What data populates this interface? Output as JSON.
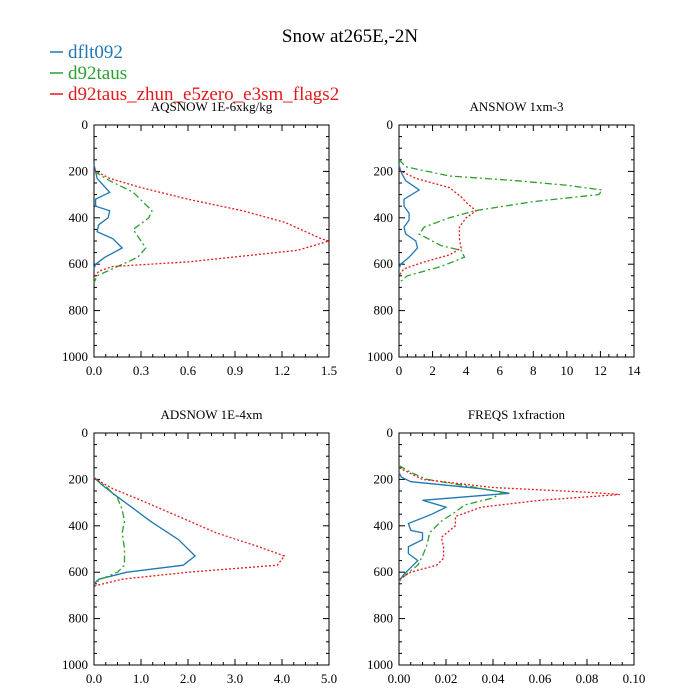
{
  "figure": {
    "title": "Snow at265E,-2N"
  },
  "legend": [
    {
      "name": "dflt092",
      "color": "#1f77b4",
      "dash": "solid"
    },
    {
      "name": "d92taus",
      "color": "#2ca02c",
      "dash": "dashdot"
    },
    {
      "name": "d92taus_zhun_e5zero_e3sm_flags2",
      "color": "#e31a1c",
      "dash": "dotted"
    }
  ],
  "chart_data": [
    {
      "type": "line",
      "title": "AQSNOW  1E-6xkg/kg",
      "xlim": [
        0,
        1.5
      ],
      "xticks": [
        "0.0",
        "0.3",
        "0.6",
        "0.9",
        "1.2",
        "1.5"
      ],
      "ylim": [
        1000,
        0
      ],
      "yticks": [
        "0",
        "200",
        "400",
        "600",
        "800",
        "1000"
      ],
      "series": [
        {
          "name": "dflt092",
          "points": [
            [
              0,
              170
            ],
            [
              0.01,
              200
            ],
            [
              0.02,
              230
            ],
            [
              0.1,
              290
            ],
            [
              0.01,
              320
            ],
            [
              0.01,
              350
            ],
            [
              0.1,
              370
            ],
            [
              0.09,
              400
            ],
            [
              0.03,
              430
            ],
            [
              0.02,
              460
            ],
            [
              0.12,
              490
            ],
            [
              0.18,
              530
            ],
            [
              0.07,
              570
            ],
            [
              0.01,
              600
            ],
            [
              0,
              620
            ]
          ]
        },
        {
          "name": "d92taus",
          "points": [
            [
              0,
              200
            ],
            [
              0.1,
              240
            ],
            [
              0.25,
              290
            ],
            [
              0.37,
              370
            ],
            [
              0.35,
              400
            ],
            [
              0.25,
              450
            ],
            [
              0.28,
              480
            ],
            [
              0.33,
              530
            ],
            [
              0.28,
              570
            ],
            [
              0.15,
              610
            ],
            [
              0.02,
              650
            ],
            [
              0,
              680
            ]
          ]
        },
        {
          "name": "d92taus_zhun_e5zero_e3sm_flags2",
          "points": [
            [
              0,
              195
            ],
            [
              0.1,
              230
            ],
            [
              0.3,
              270
            ],
            [
              0.6,
              320
            ],
            [
              0.95,
              370
            ],
            [
              1.22,
              420
            ],
            [
              1.35,
              460
            ],
            [
              1.45,
              490
            ],
            [
              1.5,
              500
            ],
            [
              1.3,
              540
            ],
            [
              0.6,
              590
            ],
            [
              0.12,
              610
            ],
            [
              0.03,
              630
            ],
            [
              0,
              660
            ]
          ]
        }
      ]
    },
    {
      "type": "line",
      "title": "ANSNOW  1xm-3",
      "xlim": [
        0,
        14
      ],
      "xticks": [
        "0",
        "2",
        "4",
        "6",
        "8",
        "10",
        "12",
        "14"
      ],
      "ylim": [
        1000,
        0
      ],
      "yticks": [
        "0",
        "200",
        "400",
        "600",
        "800",
        "1000"
      ],
      "series": [
        {
          "name": "dflt092",
          "points": [
            [
              0,
              170
            ],
            [
              0.1,
              200
            ],
            [
              0.4,
              240
            ],
            [
              1.2,
              280
            ],
            [
              0.3,
              320
            ],
            [
              0.3,
              350
            ],
            [
              0.6,
              380
            ],
            [
              0.6,
              410
            ],
            [
              0.3,
              440
            ],
            [
              0.4,
              470
            ],
            [
              1.0,
              500
            ],
            [
              1.1,
              530
            ],
            [
              0.6,
              570
            ],
            [
              0.1,
              600
            ],
            [
              0,
              620
            ]
          ]
        },
        {
          "name": "d92taus",
          "points": [
            [
              0,
              150
            ],
            [
              0.4,
              180
            ],
            [
              3.0,
              220
            ],
            [
              7.0,
              240
            ],
            [
              10.0,
              260
            ],
            [
              12.1,
              280
            ],
            [
              11.9,
              300
            ],
            [
              8.0,
              330
            ],
            [
              4.5,
              370
            ],
            [
              3.0,
              400
            ],
            [
              1.5,
              440
            ],
            [
              1.2,
              470
            ],
            [
              2.5,
              520
            ],
            [
              3.7,
              540
            ],
            [
              3.9,
              570
            ],
            [
              2.5,
              610
            ],
            [
              0.5,
              650
            ],
            [
              0,
              680
            ]
          ]
        },
        {
          "name": "d92taus_zhun_e5zero_e3sm_flags2",
          "points": [
            [
              0,
              195
            ],
            [
              1.0,
              230
            ],
            [
              3.0,
              270
            ],
            [
              3.7,
              310
            ],
            [
              4.1,
              340
            ],
            [
              4.6,
              370
            ],
            [
              4.0,
              400
            ],
            [
              3.6,
              440
            ],
            [
              3.6,
              490
            ],
            [
              3.7,
              530
            ],
            [
              3.0,
              560
            ],
            [
              1.5,
              590
            ],
            [
              0.3,
              620
            ],
            [
              0,
              650
            ]
          ]
        }
      ]
    },
    {
      "type": "line",
      "title": "ADSNOW  1E-4xm",
      "xlim": [
        0,
        5.0
      ],
      "xticks": [
        "0.0",
        "1.0",
        "2.0",
        "3.0",
        "4.0",
        "5.0"
      ],
      "ylim": [
        1000,
        0
      ],
      "yticks": [
        "0",
        "200",
        "400",
        "600",
        "800",
        "1000"
      ],
      "series": [
        {
          "name": "dflt092",
          "points": [
            [
              0,
              190
            ],
            [
              0.15,
              220
            ],
            [
              0.4,
              260
            ],
            [
              0.8,
              320
            ],
            [
              1.2,
              380
            ],
            [
              1.8,
              460
            ],
            [
              2.15,
              530
            ],
            [
              1.9,
              570
            ],
            [
              0.7,
              600
            ],
            [
              0.1,
              630
            ],
            [
              0,
              650
            ]
          ]
        },
        {
          "name": "d92taus",
          "points": [
            [
              0,
              195
            ],
            [
              0.25,
              230
            ],
            [
              0.5,
              280
            ],
            [
              0.6,
              330
            ],
            [
              0.65,
              380
            ],
            [
              0.6,
              430
            ],
            [
              0.65,
              500
            ],
            [
              0.65,
              570
            ],
            [
              0.5,
              600
            ],
            [
              0.15,
              630
            ],
            [
              0,
              650
            ]
          ]
        },
        {
          "name": "d92taus_zhun_e5zero_e3sm_flags2",
          "points": [
            [
              0,
              195
            ],
            [
              0.4,
              240
            ],
            [
              1.0,
              290
            ],
            [
              1.8,
              360
            ],
            [
              2.6,
              430
            ],
            [
              3.5,
              490
            ],
            [
              4.05,
              530
            ],
            [
              3.9,
              570
            ],
            [
              2.0,
              600
            ],
            [
              0.6,
              630
            ],
            [
              0,
              660
            ]
          ]
        }
      ]
    },
    {
      "type": "line",
      "title": "FREQS  1xfraction",
      "xlim": [
        0,
        0.1
      ],
      "xticks": [
        "0.00",
        "0.02",
        "0.04",
        "0.06",
        "0.08",
        "0.10"
      ],
      "ylim": [
        1000,
        0
      ],
      "yticks": [
        "0",
        "200",
        "400",
        "600",
        "800",
        "1000"
      ],
      "series": [
        {
          "name": "dflt092",
          "points": [
            [
              0,
              170
            ],
            [
              0.001,
              190
            ],
            [
              0.005,
              210
            ],
            [
              0.035,
              240
            ],
            [
              0.047,
              260
            ],
            [
              0.01,
              290
            ],
            [
              0.02,
              320
            ],
            [
              0.014,
              350
            ],
            [
              0.004,
              390
            ],
            [
              0.005,
              420
            ],
            [
              0.01,
              430
            ],
            [
              0.01,
              460
            ],
            [
              0.004,
              490
            ],
            [
              0.004,
              520
            ],
            [
              0.008,
              550
            ],
            [
              0.005,
              580
            ],
            [
              0.002,
              610
            ],
            [
              0,
              640
            ]
          ]
        },
        {
          "name": "d92taus",
          "points": [
            [
              0,
              140
            ],
            [
              0.005,
              170
            ],
            [
              0.012,
              200
            ],
            [
              0.03,
              230
            ],
            [
              0.044,
              255
            ],
            [
              0.04,
              280
            ],
            [
              0.028,
              310
            ],
            [
              0.024,
              340
            ],
            [
              0.018,
              380
            ],
            [
              0.013,
              430
            ],
            [
              0.012,
              480
            ],
            [
              0.01,
              530
            ],
            [
              0.008,
              570
            ],
            [
              0.003,
              610
            ],
            [
              0,
              640
            ]
          ]
        },
        {
          "name": "d92taus_zhun_e5zero_e3sm_flags2",
          "points": [
            [
              0,
              150
            ],
            [
              0.005,
              175
            ],
            [
              0.01,
              200
            ],
            [
              0.04,
              235
            ],
            [
              0.08,
              255
            ],
            [
              0.094,
              265
            ],
            [
              0.06,
              290
            ],
            [
              0.035,
              320
            ],
            [
              0.024,
              360
            ],
            [
              0.024,
              400
            ],
            [
              0.018,
              450
            ],
            [
              0.019,
              490
            ],
            [
              0.019,
              540
            ],
            [
              0.016,
              570
            ],
            [
              0.005,
              600
            ],
            [
              0,
              630
            ]
          ]
        }
      ]
    }
  ]
}
